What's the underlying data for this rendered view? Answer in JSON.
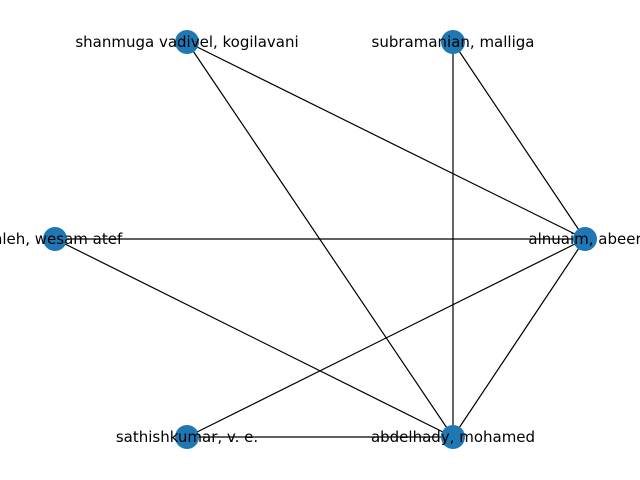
{
  "graph": {
    "node_color": "#1f77b4",
    "edge_color": "#000000",
    "nodes": [
      {
        "id": "shanmuga",
        "label": "shanmuga vadivel, kogilavani"
      },
      {
        "id": "subramanian",
        "label": "subramanian, malliga"
      },
      {
        "id": "wesam",
        "label": "mleh, wesam atef"
      },
      {
        "id": "alnuaim",
        "label": "alnuaim, abeer"
      },
      {
        "id": "sathishkumar",
        "label": "sathishkumar, v. e."
      },
      {
        "id": "abdelhady",
        "label": "abdelhady, mohamed"
      }
    ],
    "edges": [
      [
        "shanmuga",
        "alnuaim"
      ],
      [
        "shanmuga",
        "abdelhady"
      ],
      [
        "subramanian",
        "alnuaim"
      ],
      [
        "subramanian",
        "abdelhady"
      ],
      [
        "wesam",
        "alnuaim"
      ],
      [
        "wesam",
        "abdelhady"
      ],
      [
        "alnuaim",
        "sathishkumar"
      ],
      [
        "alnuaim",
        "abdelhady"
      ],
      [
        "sathishkumar",
        "abdelhady"
      ]
    ]
  }
}
